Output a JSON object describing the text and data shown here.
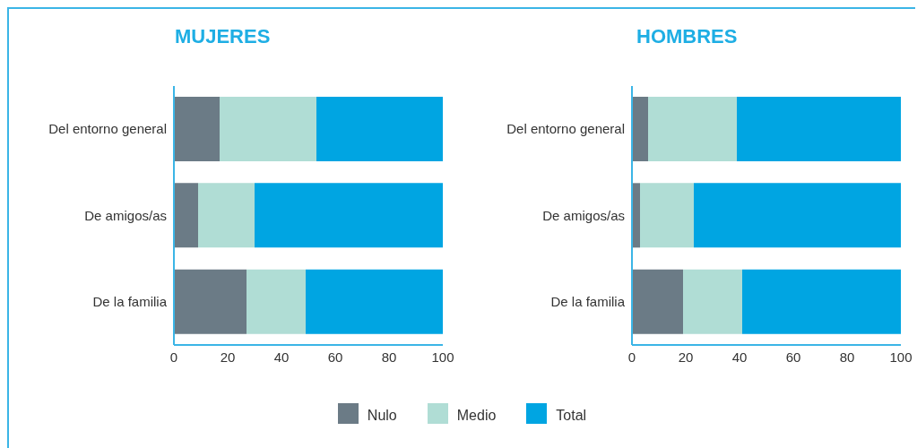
{
  "chart_data": [
    {
      "type": "bar",
      "title": "MUJERES",
      "orientation": "horizontal",
      "stacked": true,
      "categories": [
        "Del entorno general",
        "De amigos/as",
        "De la familia"
      ],
      "series": [
        {
          "name": "Nulo",
          "color": "#6b7b86",
          "values": [
            17,
            9,
            27
          ]
        },
        {
          "name": "Medio",
          "color": "#b0ddd5",
          "values": [
            36,
            21,
            22
          ]
        },
        {
          "name": "Total",
          "color": "#00a5e2",
          "values": [
            47,
            70,
            51
          ]
        }
      ],
      "xlim": [
        0,
        100
      ],
      "xticks": [
        0,
        20,
        40,
        60,
        80,
        100
      ],
      "grid": false,
      "legend": "bottom"
    },
    {
      "type": "bar",
      "title": "HOMBRES",
      "orientation": "horizontal",
      "stacked": true,
      "categories": [
        "Del entorno general",
        "De amigos/as",
        "De la familia"
      ],
      "series": [
        {
          "color": "#6b7b86",
          "values": [
            6,
            3,
            19
          ]
        },
        {
          "color": "#b0ddd5",
          "values": [
            33,
            20,
            22
          ]
        },
        {
          "color": "#00a5e2",
          "values": [
            61,
            77,
            59
          ]
        }
      ],
      "xlim": [
        0,
        100
      ],
      "xticks": [
        0,
        20,
        40,
        60,
        80,
        100
      ],
      "grid": false
    }
  ]
}
